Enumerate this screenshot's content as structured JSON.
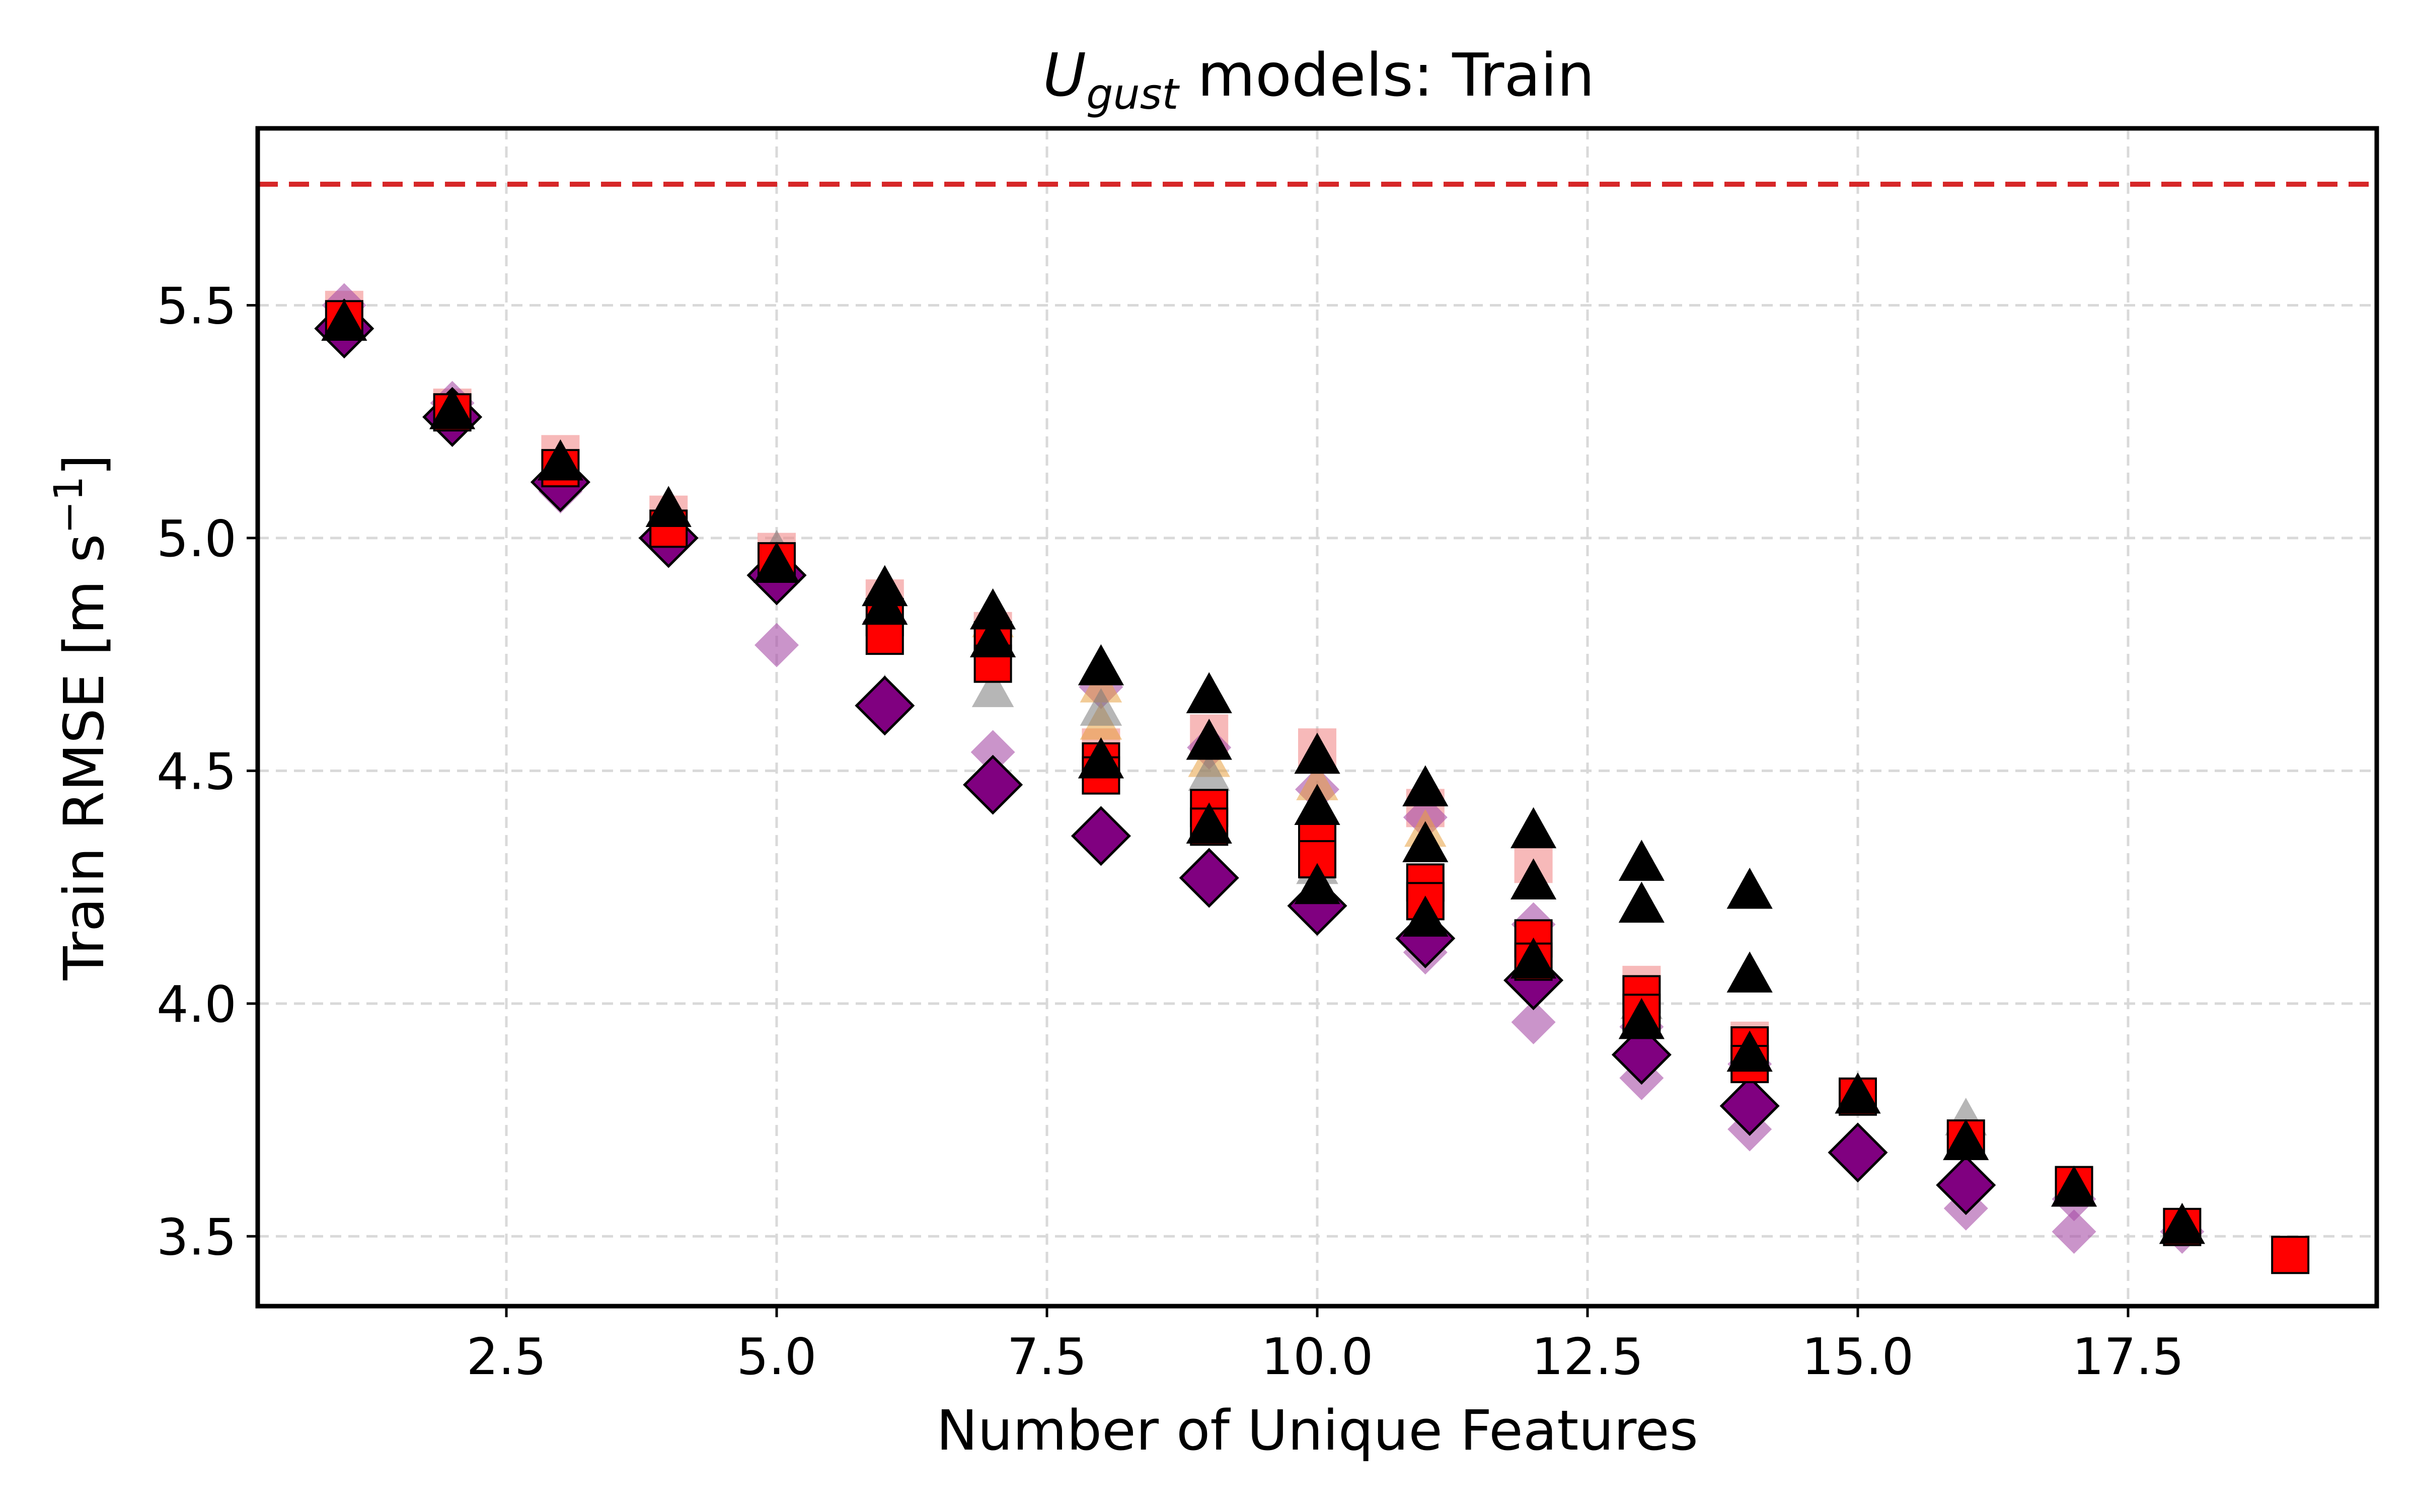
{
  "chart_data": {
    "type": "scatter",
    "title": {
      "main": "U",
      "subscript": "gust",
      "rest": " models: Train"
    },
    "xlabel": "Number of Unique Features",
    "ylabel": {
      "main": "Train RMSE [m s",
      "superscript": "−1",
      "end": "]"
    },
    "xlim": [
      0.2,
      19.8
    ],
    "ylim": [
      3.35,
      5.88
    ],
    "xticks": [
      2.5,
      5.0,
      7.5,
      10.0,
      12.5,
      15.0,
      17.5
    ],
    "xtick_labels": [
      "2.5",
      "5.0",
      "7.5",
      "10.0",
      "12.5",
      "15.0",
      "17.5"
    ],
    "yticks": [
      3.5,
      4.0,
      4.5,
      5.0,
      5.5
    ],
    "ytick_labels": [
      "3.5",
      "4.0",
      "4.5",
      "5.0",
      "5.5"
    ],
    "grid": true,
    "reference_line": {
      "y": 5.76,
      "style": "dashed",
      "color": "#d62728"
    },
    "series": [
      {
        "marker": "square",
        "color": "#ff0000",
        "points": [
          [
            1,
            5.47
          ],
          [
            2,
            5.27
          ],
          [
            3,
            5.15
          ],
          [
            4,
            5.02
          ],
          [
            5,
            4.95
          ],
          [
            6,
            4.83
          ],
          [
            6,
            4.79
          ],
          [
            7,
            4.78
          ],
          [
            7,
            4.73
          ],
          [
            8,
            4.52
          ],
          [
            8,
            4.49
          ],
          [
            9,
            4.42
          ],
          [
            9,
            4.38
          ],
          [
            10,
            4.35
          ],
          [
            10,
            4.31
          ],
          [
            11,
            4.26
          ],
          [
            11,
            4.22
          ],
          [
            12,
            4.14
          ],
          [
            12,
            4.09
          ],
          [
            13,
            4.02
          ],
          [
            13,
            3.98
          ],
          [
            14,
            3.91
          ],
          [
            14,
            3.87
          ],
          [
            15,
            3.8
          ],
          [
            16,
            3.71
          ],
          [
            17,
            3.61
          ],
          [
            18,
            3.52
          ],
          [
            19,
            3.46
          ]
        ]
      },
      {
        "marker": "square-light",
        "color": "#f08080",
        "points": [
          [
            1,
            5.49
          ],
          [
            2,
            5.28
          ],
          [
            3,
            5.18
          ],
          [
            4,
            5.05
          ],
          [
            5,
            4.97
          ],
          [
            6,
            4.87
          ],
          [
            7,
            4.8
          ],
          [
            8,
            4.55
          ],
          [
            9,
            4.58
          ],
          [
            10,
            4.55
          ],
          [
            11,
            4.42
          ],
          [
            12,
            4.3
          ],
          [
            13,
            4.04
          ],
          [
            14,
            3.92
          ]
        ]
      },
      {
        "marker": "diamond",
        "color": "#800080",
        "points": [
          [
            1,
            5.45
          ],
          [
            2,
            5.26
          ],
          [
            3,
            5.12
          ],
          [
            4,
            5.0
          ],
          [
            5,
            4.92
          ],
          [
            6,
            4.64
          ],
          [
            7,
            4.47
          ],
          [
            8,
            4.36
          ],
          [
            9,
            4.27
          ],
          [
            10,
            4.21
          ],
          [
            11,
            4.14
          ],
          [
            12,
            4.05
          ],
          [
            13,
            3.89
          ],
          [
            14,
            3.78
          ],
          [
            15,
            3.68
          ],
          [
            16,
            3.61
          ]
        ]
      },
      {
        "marker": "diamond-light",
        "color": "#a64ca6",
        "points": [
          [
            1,
            5.5
          ],
          [
            2,
            5.29
          ],
          [
            3,
            5.1
          ],
          [
            5,
            4.77
          ],
          [
            6,
            4.82
          ],
          [
            7,
            4.54
          ],
          [
            8,
            4.68
          ],
          [
            9,
            4.55
          ],
          [
            10,
            4.46
          ],
          [
            10,
            4.2
          ],
          [
            11,
            4.4
          ],
          [
            11,
            4.11
          ],
          [
            12,
            4.17
          ],
          [
            12,
            3.96
          ],
          [
            13,
            3.95
          ],
          [
            13,
            3.84
          ],
          [
            14,
            3.87
          ],
          [
            14,
            3.73
          ],
          [
            16,
            3.56
          ],
          [
            17,
            3.58
          ],
          [
            17,
            3.51
          ],
          [
            18,
            3.51
          ]
        ]
      },
      {
        "marker": "triangle",
        "color": "#000000",
        "points": [
          [
            1,
            5.46
          ],
          [
            2,
            5.27
          ],
          [
            3,
            5.16
          ],
          [
            4,
            5.06
          ],
          [
            5,
            4.94
          ],
          [
            6,
            4.89
          ],
          [
            6,
            4.85
          ],
          [
            7,
            4.84
          ],
          [
            7,
            4.78
          ],
          [
            8,
            4.72
          ],
          [
            8,
            4.52
          ],
          [
            9,
            4.66
          ],
          [
            9,
            4.56
          ],
          [
            9,
            4.38
          ],
          [
            10,
            4.53
          ],
          [
            10,
            4.42
          ],
          [
            10,
            4.25
          ],
          [
            11,
            4.46
          ],
          [
            11,
            4.34
          ],
          [
            11,
            4.18
          ],
          [
            12,
            4.37
          ],
          [
            12,
            4.26
          ],
          [
            12,
            4.09
          ],
          [
            13,
            4.3
          ],
          [
            13,
            4.21
          ],
          [
            13,
            3.96
          ],
          [
            14,
            4.24
          ],
          [
            14,
            4.06
          ],
          [
            14,
            3.89
          ],
          [
            15,
            3.8
          ],
          [
            16,
            3.7
          ],
          [
            17,
            3.6
          ],
          [
            18,
            3.52
          ]
        ]
      },
      {
        "marker": "triangle-gray",
        "color": "#7a7a7a",
        "points": [
          [
            5,
            4.97
          ],
          [
            6,
            4.66
          ],
          [
            7,
            4.67
          ],
          [
            8,
            4.63
          ],
          [
            9,
            4.49
          ],
          [
            10,
            4.29
          ],
          [
            13,
            4.0
          ],
          [
            16,
            3.75
          ]
        ]
      },
      {
        "marker": "triangle-orange",
        "color": "#e8a040",
        "points": [
          [
            7,
            4.82
          ],
          [
            8,
            4.68
          ],
          [
            8,
            4.6
          ],
          [
            9,
            4.52
          ],
          [
            10,
            4.47
          ],
          [
            11,
            4.37
          ]
        ]
      }
    ]
  }
}
